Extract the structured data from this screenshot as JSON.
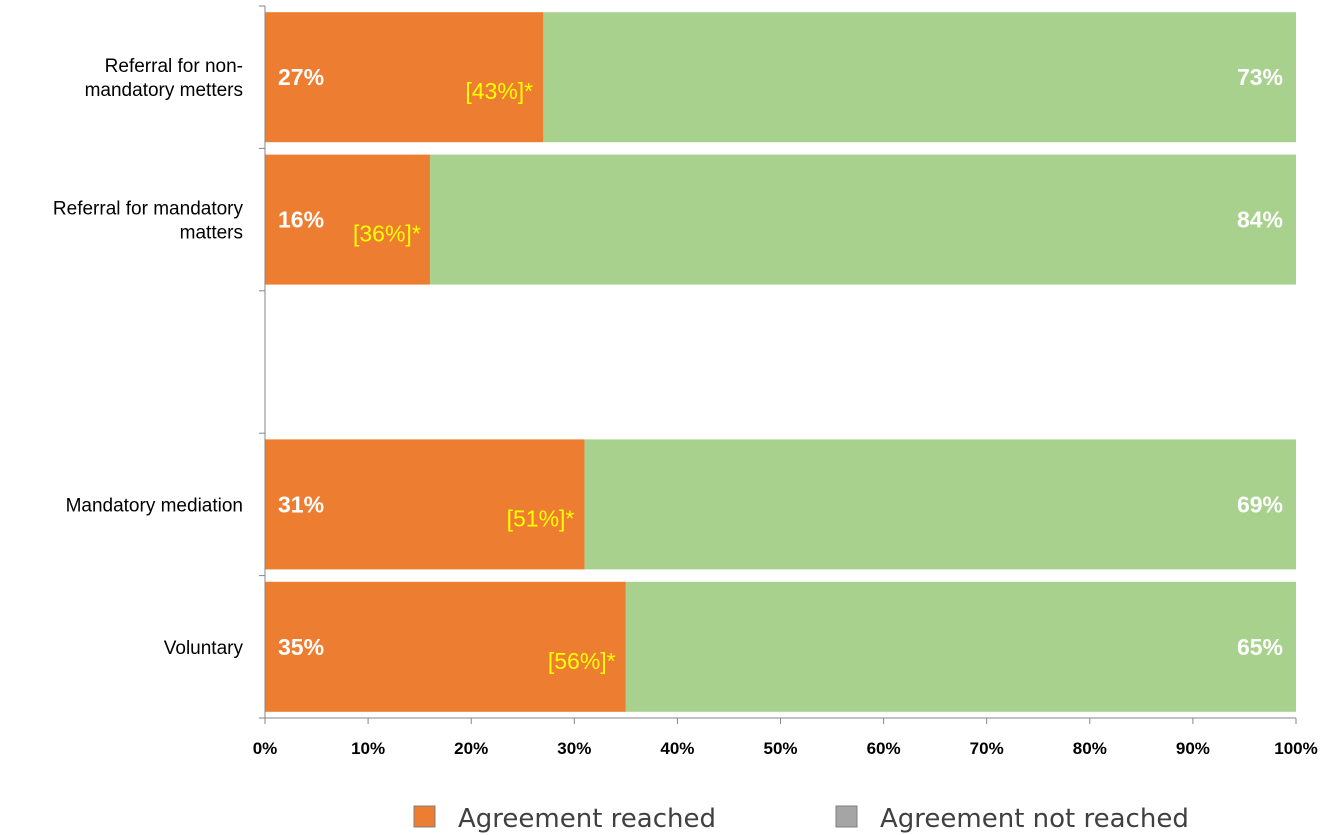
{
  "chart_data": {
    "type": "bar",
    "orientation": "horizontal",
    "stacked": true,
    "percent_scale": true,
    "categories": [
      [
        "Referral for non-",
        "mandatory metters"
      ],
      [
        "Referral for mandatory",
        "matters"
      ],
      [],
      [
        "Mandatory mediation"
      ],
      [
        "Voluntary"
      ]
    ],
    "series": [
      {
        "name": "Agreement reached",
        "color": "#ed7d31",
        "values": [
          27,
          16,
          null,
          31,
          35
        ],
        "labels": [
          "27%",
          "16%",
          "",
          "31%",
          "35%"
        ]
      },
      {
        "name": "Agreement not reached",
        "color": "#a9d18e",
        "legend_color": "#a5a5a5",
        "values": [
          73,
          84,
          null,
          69,
          65
        ],
        "labels": [
          "73%",
          "84%",
          "",
          "69%",
          "65%"
        ]
      }
    ],
    "annotations": [
      "[43%]*",
      "[36%]*",
      "",
      "[51%]*",
      "[56%]*"
    ],
    "annotation_color": "#ffff00",
    "xlim": [
      0,
      100
    ],
    "xticks": [
      "0%",
      "10%",
      "20%",
      "30%",
      "40%",
      "50%",
      "60%",
      "70%",
      "80%",
      "90%",
      "100%"
    ],
    "grid": false,
    "legend_position": "bottom"
  }
}
